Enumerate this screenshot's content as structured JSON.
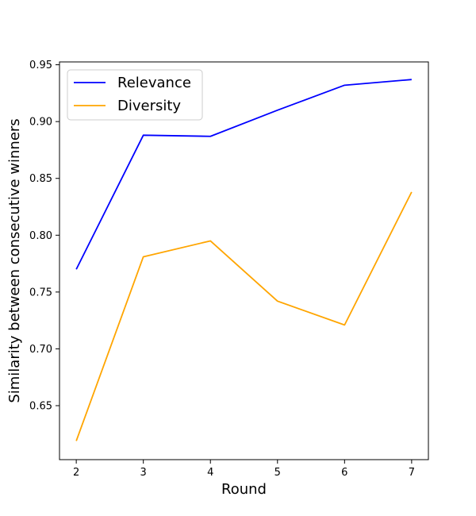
{
  "chart_data": {
    "type": "line",
    "title": "",
    "xlabel": "Round",
    "ylabel": "Similarity between consecutive winners",
    "x": [
      2,
      3,
      4,
      5,
      6,
      7
    ],
    "xlim": [
      1.75,
      7.25
    ],
    "ylim": [
      0.6025,
      0.9525
    ],
    "xticks": [
      "2",
      "3",
      "4",
      "5",
      "6",
      "7"
    ],
    "yticks": [
      "0.65",
      "0.70",
      "0.75",
      "0.80",
      "0.85",
      "0.90",
      "0.95"
    ],
    "grid": false,
    "legend_position": "upper left",
    "series": [
      {
        "name": "Relevance",
        "color": "#0000ff",
        "values": [
          0.77,
          0.888,
          0.887,
          0.91,
          0.932,
          0.937
        ]
      },
      {
        "name": "Diversity",
        "color": "#ffa500",
        "values": [
          0.619,
          0.781,
          0.795,
          0.742,
          0.721,
          0.838
        ]
      }
    ]
  }
}
